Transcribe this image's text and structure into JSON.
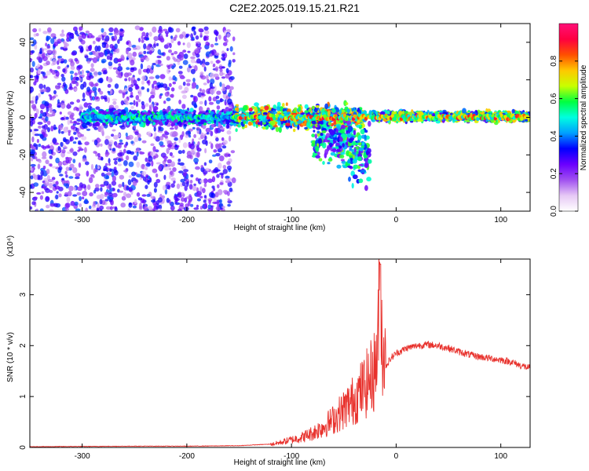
{
  "title": "C2E2.2025.019.15.21.R21",
  "chart_data": [
    {
      "type": "heatmap",
      "title": "C2E2.2025.019.15.21.R21",
      "xlabel": "Height of straight line (km)",
      "ylabel": "Frequency (Hz)",
      "xlim": [
        -350,
        128
      ],
      "ylim": [
        -50,
        50
      ],
      "xticks": [
        -300,
        -200,
        -100,
        0,
        100
      ],
      "yticks": [
        -40,
        -20,
        0,
        20,
        40
      ],
      "colorbar": {
        "label": "Normalized spectral amplitude",
        "range": [
          0.0,
          1.0
        ],
        "ticks": [
          0.0,
          0.2,
          0.4,
          0.6,
          0.8
        ],
        "tick_labels": [
          "0.0",
          "0.2",
          "0.4",
          "0.6",
          "0.8"
        ],
        "colormap": [
          "#ffffff",
          "#e6c8f5",
          "#a050f0",
          "#6a00ff",
          "#0000ff",
          "#00a0ff",
          "#00ffe0",
          "#00ff40",
          "#c8ff00",
          "#ffc800",
          "#ff5000",
          "#ff0040",
          "#ff1078"
        ]
      },
      "regions": [
        {
          "x": [
            -350,
            -155
          ],
          "description_free": true,
          "freq_spread": [
            -50,
            48
          ],
          "amplitude": 0.25
        },
        {
          "x": [
            -300,
            -155
          ],
          "freq_spread": [
            -5,
            5
          ],
          "amplitude": 0.45
        },
        {
          "x": [
            -155,
            -30
          ],
          "freq_spread": [
            -8,
            8
          ],
          "amplitude": 0.7
        },
        {
          "x": [
            -80,
            -25
          ],
          "freq_spread": [
            -30,
            12
          ],
          "amplitude": 0.5
        },
        {
          "x": [
            -25,
            128
          ],
          "freq_spread": [
            -3,
            4
          ],
          "amplitude": 0.6
        }
      ]
    },
    {
      "type": "line",
      "xlabel": "Height of straight line (km)",
      "ylabel": "SNR (10 * v/v)",
      "y_multiplier": "(x10⁴)",
      "xlim": [
        -350,
        128
      ],
      "ylim": [
        0,
        3.7
      ],
      "xticks": [
        -300,
        -200,
        -100,
        0,
        100
      ],
      "yticks": [
        0,
        1,
        2,
        3
      ],
      "series": [
        {
          "color": "#e8312c",
          "x": [
            -350,
            -300,
            -250,
            -200,
            -150,
            -120,
            -110,
            -100,
            -90,
            -80,
            -70,
            -60,
            -50,
            -40,
            -30,
            -25,
            -20,
            -17,
            -15,
            -14,
            -10,
            -5,
            0,
            10,
            20,
            30,
            40,
            50,
            60,
            70,
            80,
            90,
            100,
            110,
            120,
            128
          ],
          "y": [
            0.01,
            0.015,
            0.02,
            0.02,
            0.03,
            0.06,
            0.1,
            0.15,
            0.2,
            0.28,
            0.4,
            0.55,
            0.75,
            0.95,
            1.2,
            1.35,
            1.55,
            2.2,
            3.6,
            2.3,
            1.6,
            1.75,
            1.85,
            1.95,
            2.0,
            2.02,
            2.0,
            1.95,
            1.88,
            1.82,
            1.78,
            1.75,
            1.72,
            1.68,
            1.6,
            1.56
          ]
        }
      ]
    }
  ]
}
